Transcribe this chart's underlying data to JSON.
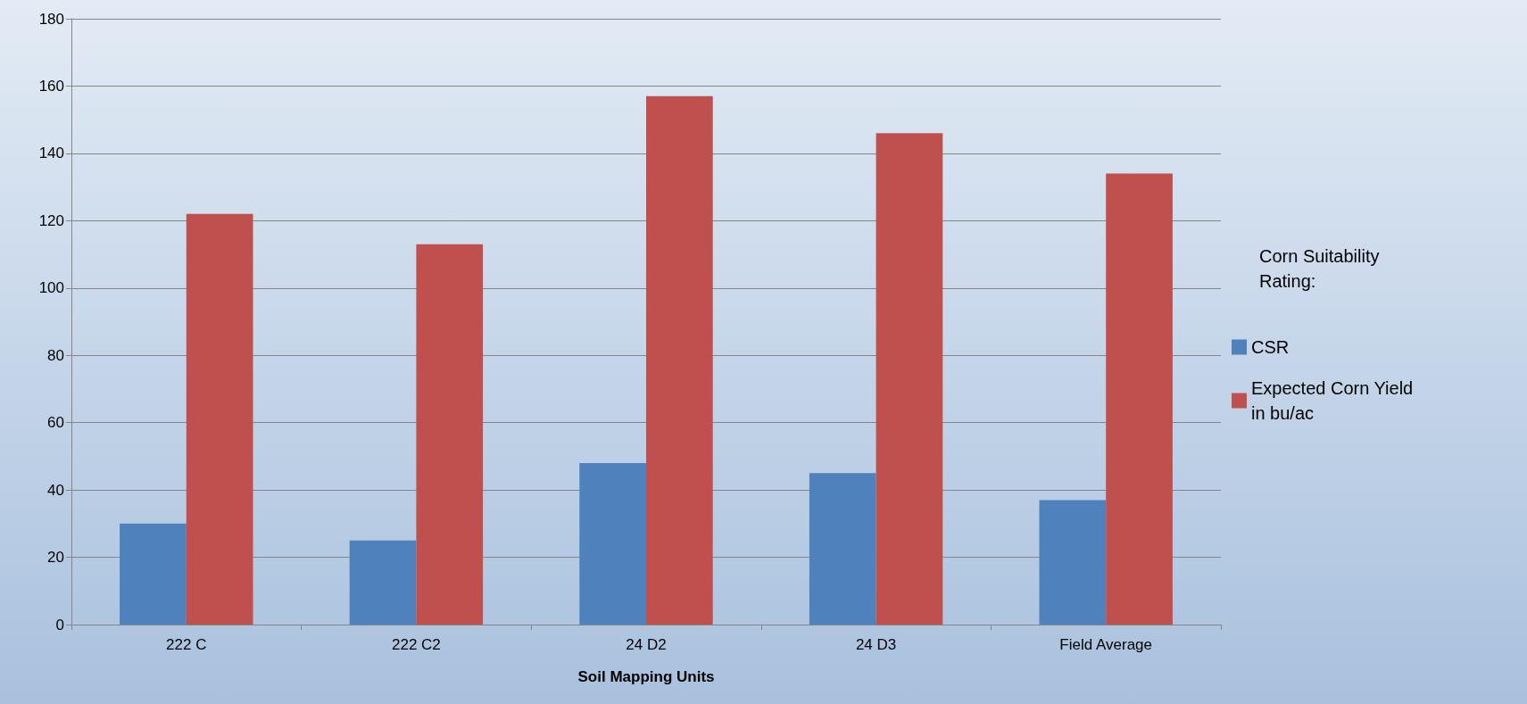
{
  "chart_data": {
    "type": "bar",
    "xlabel": "Soil Mapping Units",
    "legend_title": "Corn Suitability Rating:",
    "categories": [
      "222 C",
      "222 C2",
      "24 D2",
      "24 D3",
      "Field Average"
    ],
    "series": [
      {
        "name": "CSR",
        "color": "#4f81bd",
        "values": [
          30,
          25,
          48,
          45,
          37
        ]
      },
      {
        "name": "Expected Corn Yield in bu/ac",
        "color": "#c0504d",
        "values": [
          122,
          113,
          157,
          146,
          134
        ]
      }
    ],
    "ylim": [
      0,
      180
    ],
    "yticks": [
      0,
      20,
      40,
      60,
      80,
      100,
      120,
      140,
      160,
      180
    ],
    "grid": "y",
    "legend": "right"
  }
}
